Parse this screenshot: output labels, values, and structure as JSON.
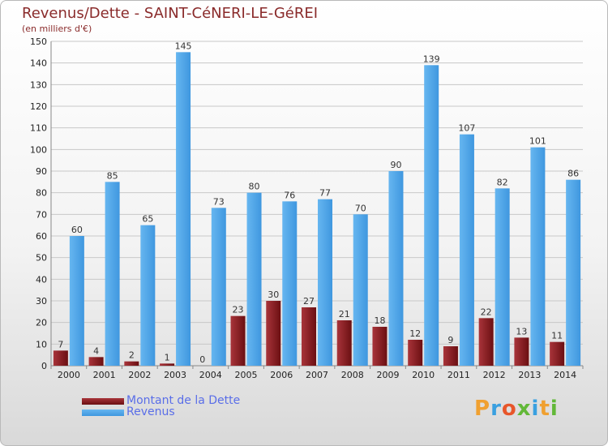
{
  "header": {
    "title": "Revenus/Dette - SAINT-CéNERI-LE-GéREI",
    "subtitle": "(en milliers d'€)"
  },
  "legend": {
    "items": [
      {
        "label": "Montant de la Dette",
        "color": "#6b0f12"
      },
      {
        "label": "Revenus",
        "color": "#4fa3e6"
      }
    ]
  },
  "logo": {
    "text": "Proxiti"
  },
  "colors": {
    "dette": "#6b0f12",
    "dette_light": "#a8343a",
    "revenus": "#3f97df",
    "revenus_light": "#66b6f0",
    "grid": "#c8c8c8",
    "axis_text": "#222222"
  },
  "chart_data": {
    "type": "bar",
    "categories": [
      "2000",
      "2001",
      "2002",
      "2003",
      "2004",
      "2005",
      "2006",
      "2007",
      "2008",
      "2009",
      "2010",
      "2011",
      "2012",
      "2013",
      "2014"
    ],
    "series": [
      {
        "name": "Montant de la Dette",
        "values": [
          7,
          4,
          2,
          1,
          0,
          23,
          30,
          27,
          21,
          18,
          12,
          9,
          22,
          13,
          11
        ]
      },
      {
        "name": "Revenus",
        "values": [
          60,
          85,
          65,
          145,
          73,
          80,
          76,
          77,
          70,
          90,
          139,
          107,
          82,
          101,
          86
        ]
      }
    ],
    "title": "Revenus/Dette - SAINT-CéNERI-LE-GéREI",
    "ylabel": "(en milliers d'€)",
    "xlabel": "",
    "ylim": [
      0,
      150
    ],
    "yticks": [
      0,
      10,
      20,
      30,
      40,
      50,
      60,
      70,
      80,
      90,
      100,
      110,
      120,
      130,
      140,
      150
    ],
    "grid": true,
    "legend_position": "bottom-left"
  }
}
